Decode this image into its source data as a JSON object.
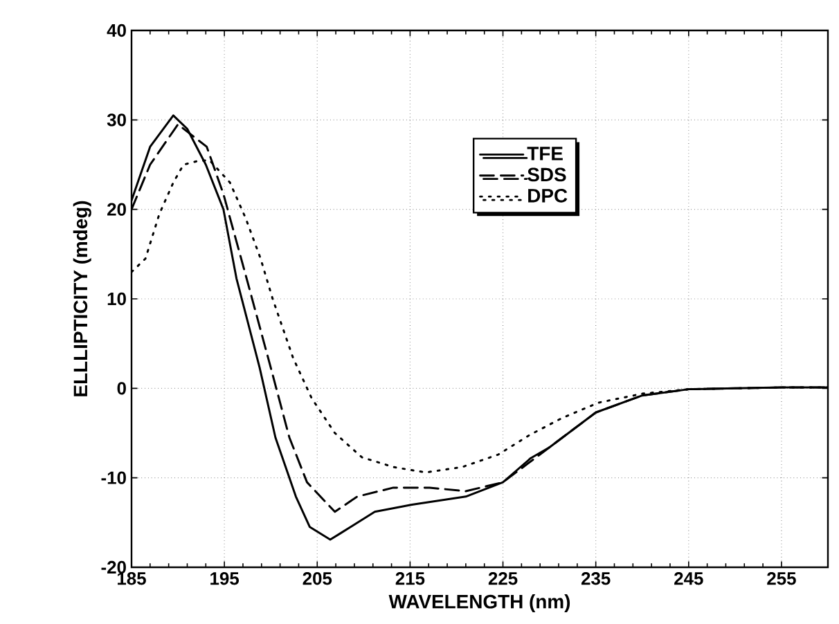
{
  "chart_data": {
    "type": "line",
    "xlabel": "WAVELENGTH    (nm)",
    "ylabel": "ELLLIPTICITY    (mdeg)",
    "xlim": [
      185,
      260
    ],
    "ylim": [
      -20,
      40
    ],
    "xticks": [
      185,
      195,
      205,
      215,
      225,
      235,
      245,
      255
    ],
    "yticks": [
      -20,
      -10,
      0,
      10,
      20,
      30,
      40
    ],
    "grid": true,
    "legend": "top right",
    "marker": "none",
    "series": [
      {
        "name": "TFE",
        "color": "#000000",
        "line_style": "solid",
        "x": [
          185,
          187,
          189.5,
          191,
          193,
          194.9,
          196.3,
          198.8,
          200.5,
          202.7,
          204.2,
          206.4,
          207.5,
          211.2,
          215.2,
          221,
          225,
          228,
          230,
          235,
          240,
          245,
          250,
          255,
          260
        ],
        "values": [
          21,
          27,
          30.5,
          29,
          25,
          20,
          12.3,
          2.3,
          -5.5,
          -12.1,
          -15.5,
          -16.9,
          -16.2,
          -13.8,
          -13,
          -12.1,
          -10.5,
          -7.8,
          -6.6,
          -2.7,
          -0.8,
          -0.1,
          0,
          0.1,
          0.1
        ]
      },
      {
        "name": "SDS",
        "color": "#000000",
        "line_style": "dashed",
        "x": [
          185,
          187,
          190,
          193.1,
          194.9,
          197.1,
          200,
          202,
          203.9,
          206.9,
          209.3,
          213.2,
          217.1,
          221,
          225,
          230,
          235,
          240,
          245,
          250,
          255,
          260
        ],
        "values": [
          20,
          25,
          29.5,
          27,
          21.7,
          13.4,
          2.3,
          -5.5,
          -10.5,
          -13.8,
          -12.1,
          -11.1,
          -11.1,
          -11.5,
          -10.5,
          -6.6,
          -2.7,
          -0.8,
          -0.1,
          0,
          0.1,
          0.1
        ]
      },
      {
        "name": "DPC",
        "color": "#000000",
        "line_style": "dotted",
        "x": [
          185,
          186.5,
          188,
          189.5,
          190.6,
          192.1,
          193.4,
          195.6,
          197.3,
          198.9,
          200.2,
          202.4,
          204.4,
          206.9,
          209.8,
          213.2,
          216.7,
          220.6,
          224.5,
          227.9,
          231.4,
          235.3,
          240,
          245,
          250,
          255,
          260
        ],
        "values": [
          13,
          14.5,
          19.5,
          23,
          25,
          25.4,
          25.5,
          23,
          19,
          14.5,
          10,
          3.4,
          -1.1,
          -5,
          -7.7,
          -8.8,
          -9.4,
          -8.8,
          -7.4,
          -5.2,
          -3.3,
          -1.6,
          -0.6,
          -0.1,
          0,
          0.1,
          0.1
        ]
      }
    ]
  }
}
